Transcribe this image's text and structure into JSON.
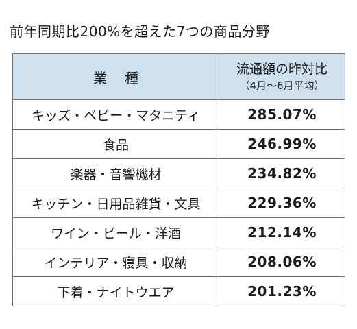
{
  "title": "前年同期比200%を超えた7つの商品分野",
  "table": {
    "header": {
      "category": "業種",
      "value_main": "流通額の昨対比",
      "value_sub": "（4月〜6月平均）"
    },
    "rows": [
      {
        "category": "キッズ・ベビー・マタニティ",
        "value": "285.07%"
      },
      {
        "category": "食品",
        "value": "246.99%"
      },
      {
        "category": "楽器・音響機材",
        "value": "234.82%"
      },
      {
        "category": "キッチン・日用品雑貨・文具",
        "value": "229.36%"
      },
      {
        "category": "ワイン・ビール・洋酒",
        "value": "212.14%"
      },
      {
        "category": "インテリア・寝具・収納",
        "value": "208.06%"
      },
      {
        "category": "下着・ナイトウエア",
        "value": "201.23%"
      }
    ]
  }
}
